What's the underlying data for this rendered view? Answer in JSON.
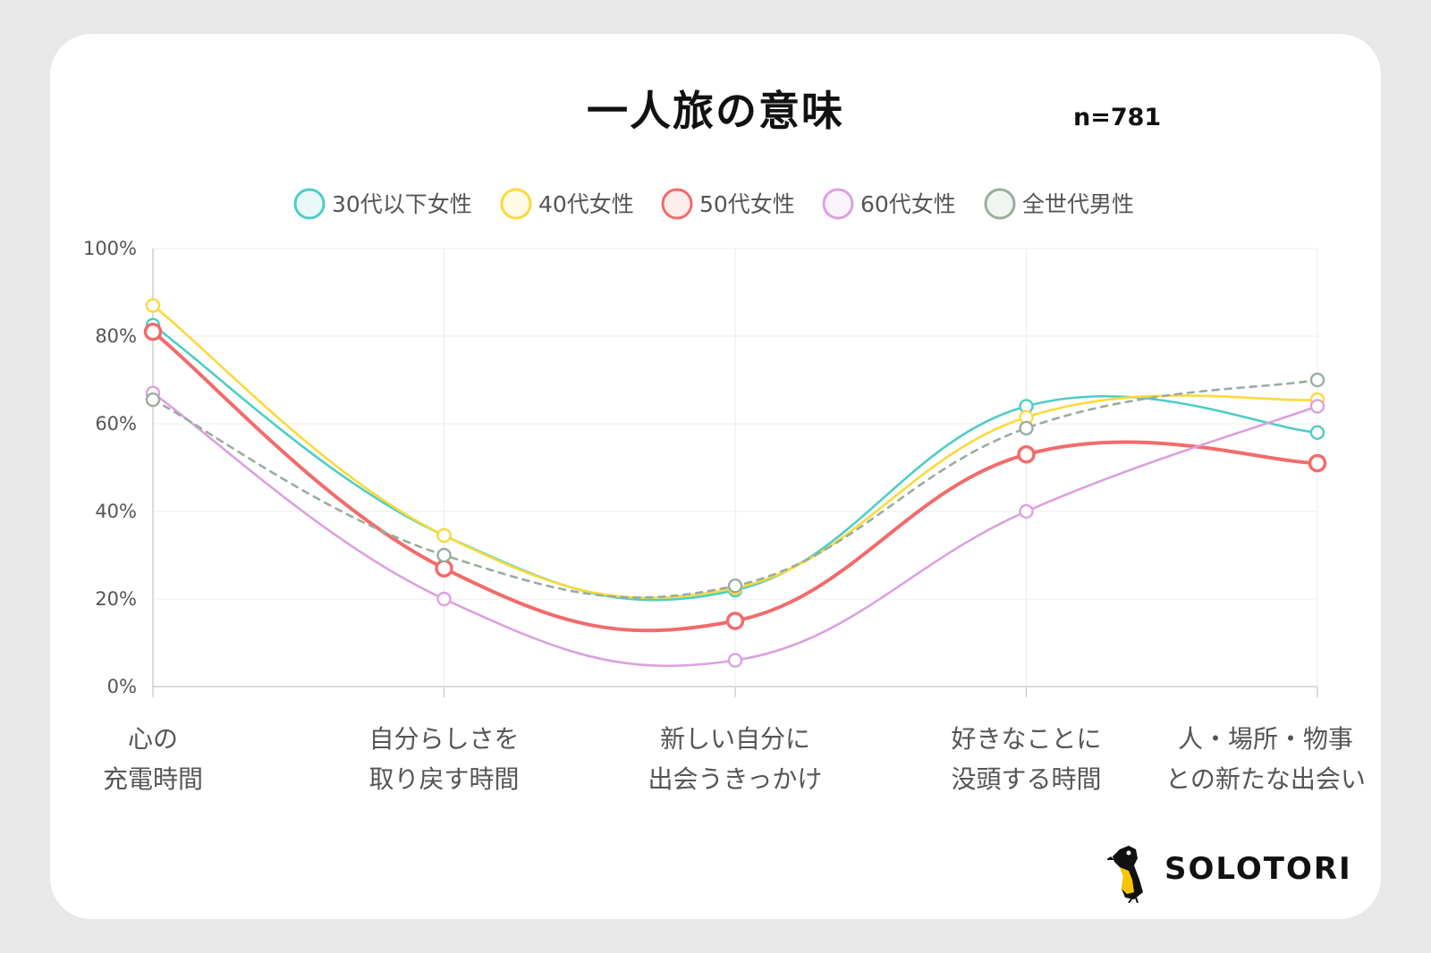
{
  "title": "一人旅の意味",
  "sample_size": "n=781",
  "brand": "SOLOTORI",
  "chart_data": {
    "type": "line",
    "title": "一人旅の意味",
    "categories": [
      [
        "心の",
        "充電時間"
      ],
      [
        "自分らしさを",
        "取り戻す時間"
      ],
      [
        "新しい自分に",
        "出会うきっかけ"
      ],
      [
        "好きなことに",
        "没頭する時間"
      ],
      [
        "人・場所・物事",
        "との新たな出会い"
      ]
    ],
    "ylim": [
      0,
      100
    ],
    "yticks": [
      0,
      20,
      40,
      60,
      80,
      100
    ],
    "ytick_labels": [
      "0%",
      "20%",
      "40%",
      "60%",
      "80%",
      "100%"
    ],
    "grid": true,
    "legend_position": "top",
    "series": [
      {
        "name": "30代以下女性",
        "values": [
          82.5,
          34.5,
          22,
          64,
          58
        ],
        "color": "#4ecdc4",
        "dashed": false
      },
      {
        "name": "40代女性",
        "values": [
          87,
          34.5,
          22.5,
          61.5,
          65.5
        ],
        "color": "#fcd93c",
        "dashed": false
      },
      {
        "name": "50代女性",
        "values": [
          81,
          27,
          15,
          53,
          51
        ],
        "color": "#f26b6b",
        "dashed": false
      },
      {
        "name": "60代女性",
        "values": [
          67,
          20,
          6,
          40,
          64
        ],
        "color": "#dba1e0",
        "dashed": false
      },
      {
        "name": "全世代男性",
        "values": [
          65.5,
          30,
          23,
          59,
          70
        ],
        "color": "#9aad9e",
        "dashed": true
      }
    ]
  }
}
